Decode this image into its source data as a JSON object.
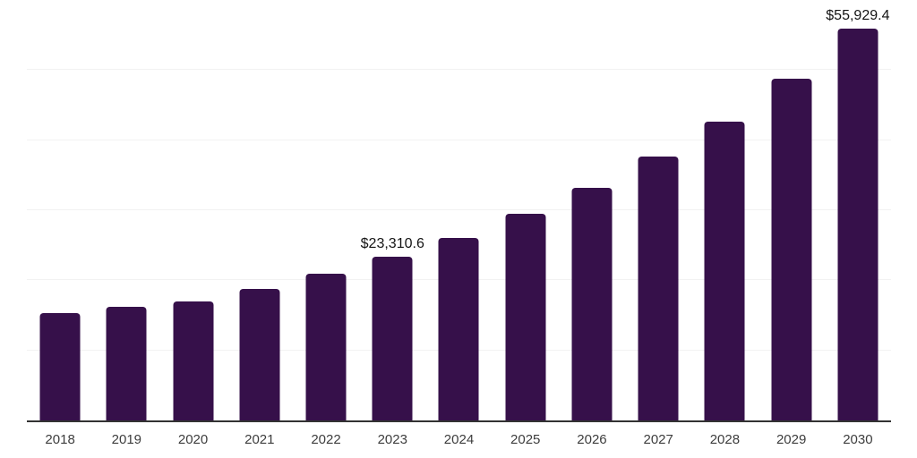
{
  "chart_data": {
    "type": "bar",
    "categories": [
      "2018",
      "2019",
      "2020",
      "2021",
      "2022",
      "2023",
      "2024",
      "2025",
      "2026",
      "2027",
      "2028",
      "2029",
      "2030"
    ],
    "values": [
      15350,
      16240,
      17010,
      18740,
      20910,
      23310.6,
      26070,
      29470,
      33170,
      37720,
      42660,
      48790,
      55929.4
    ],
    "data_labels": [
      null,
      null,
      null,
      null,
      null,
      "$23,310.6",
      null,
      null,
      null,
      null,
      null,
      null,
      "$55,929.4"
    ],
    "title": "",
    "xlabel": "",
    "ylabel": "",
    "ylim": [
      0,
      60000
    ],
    "gridline_interval": 10000,
    "grid": true,
    "legend": "none",
    "bar_color": "#36104A",
    "axis_line_color": "#333333",
    "gridline_color": "#f2f2f2",
    "data_label_color": "#141414",
    "tick_label_color": "#3d3d3d",
    "background_color": "#ffffff"
  }
}
